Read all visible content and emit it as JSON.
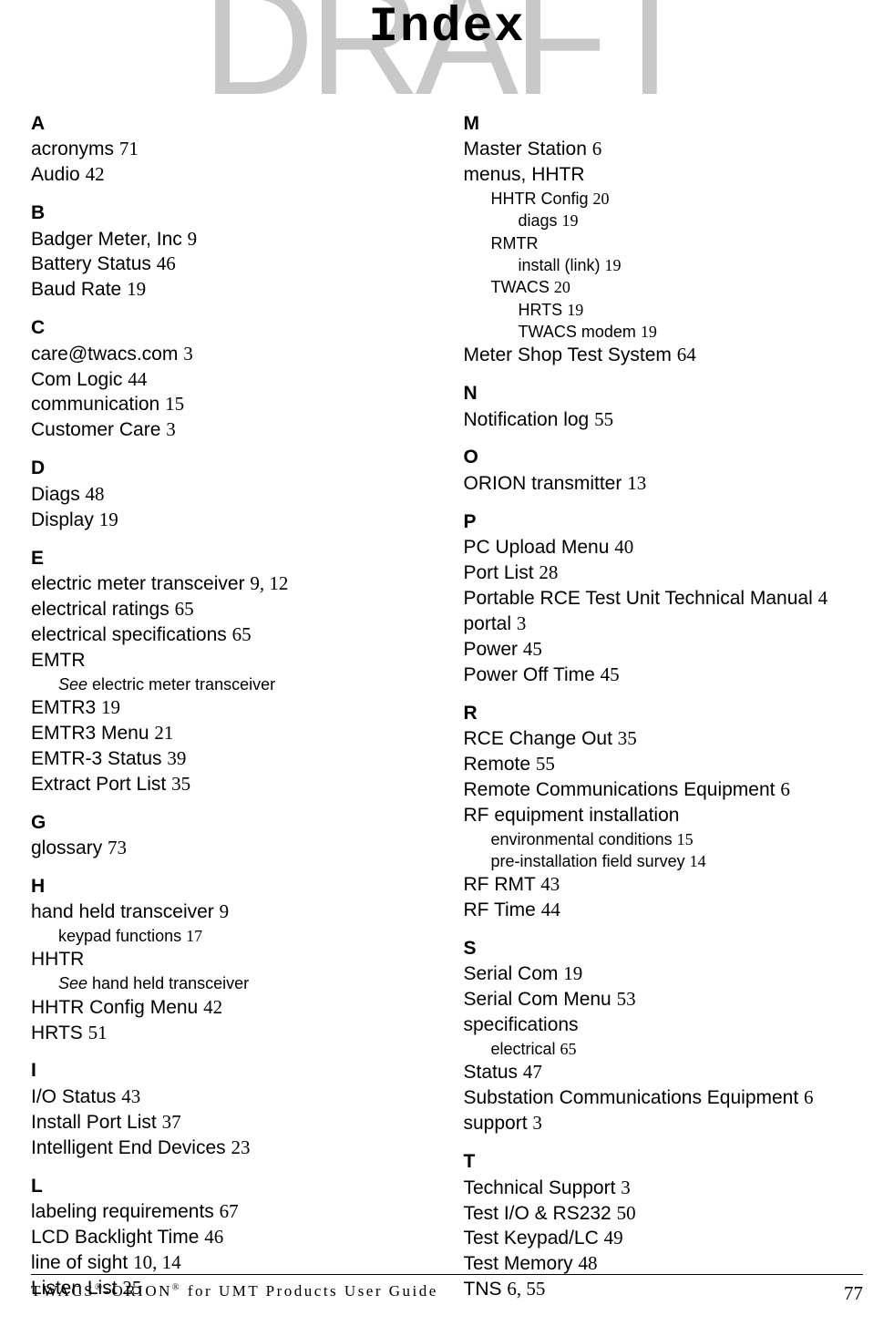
{
  "watermark": "DRAFT",
  "title": "Index",
  "left": [
    {
      "letter": "A",
      "items": [
        {
          "t": "entry",
          "label": "acronyms",
          "page": "71"
        },
        {
          "t": "entry",
          "label": "Audio",
          "page": "42"
        }
      ]
    },
    {
      "letter": "B",
      "items": [
        {
          "t": "entry",
          "label": "Badger Meter, Inc",
          "page": "9"
        },
        {
          "t": "entry",
          "label": "Battery Status",
          "page": "46"
        },
        {
          "t": "entry",
          "label": "Baud Rate",
          "page": "19"
        }
      ]
    },
    {
      "letter": "C",
      "items": [
        {
          "t": "entry",
          "label": "care@twacs.com",
          "page": "3"
        },
        {
          "t": "entry",
          "label": "Com Logic",
          "page": "44"
        },
        {
          "t": "entry",
          "label": "communication",
          "page": "15"
        },
        {
          "t": "entry",
          "label": "Customer Care",
          "page": "3"
        }
      ]
    },
    {
      "letter": "D",
      "items": [
        {
          "t": "entry",
          "label": "Diags",
          "page": "48"
        },
        {
          "t": "entry",
          "label": "Display",
          "page": "19"
        }
      ]
    },
    {
      "letter": "E",
      "items": [
        {
          "t": "entry",
          "label": "electric meter transceiver",
          "page": "9, 12"
        },
        {
          "t": "entry",
          "label": "electrical ratings",
          "page": "65"
        },
        {
          "t": "entry",
          "label": "electrical specifications",
          "page": "65"
        },
        {
          "t": "entry",
          "label": "EMTR",
          "page": ""
        },
        {
          "t": "see1",
          "label": "See",
          "tail": " electric meter transceiver"
        },
        {
          "t": "entry",
          "label": "EMTR3",
          "page": "19"
        },
        {
          "t": "entry",
          "label": "EMTR3 Menu",
          "page": "21"
        },
        {
          "t": "entry",
          "label": "EMTR-3 Status",
          "page": "39"
        },
        {
          "t": "entry",
          "label": "Extract Port List",
          "page": "35"
        }
      ]
    },
    {
      "letter": "G",
      "items": [
        {
          "t": "entry",
          "label": "glossary",
          "page": "73"
        }
      ]
    },
    {
      "letter": "H",
      "items": [
        {
          "t": "entry",
          "label": "hand held transceiver",
          "page": "9"
        },
        {
          "t": "sub1",
          "label": "keypad functions",
          "page": "17"
        },
        {
          "t": "entry",
          "label": "HHTR",
          "page": ""
        },
        {
          "t": "see1",
          "label": "See",
          "tail": " hand held transceiver"
        },
        {
          "t": "entry",
          "label": "HHTR Config Menu",
          "page": "42"
        },
        {
          "t": "entry",
          "label": "HRTS",
          "page": "51"
        }
      ]
    },
    {
      "letter": "I",
      "items": [
        {
          "t": "entry",
          "label": "I/O Status",
          "page": "43"
        },
        {
          "t": "entry",
          "label": "Install Port List",
          "page": "37"
        },
        {
          "t": "entry",
          "label": "Intelligent End Devices",
          "page": "23"
        }
      ]
    },
    {
      "letter": "L",
      "items": [
        {
          "t": "entry",
          "label": "labeling requirements",
          "page": "67"
        },
        {
          "t": "entry",
          "label": "LCD Backlight Time",
          "page": "46"
        },
        {
          "t": "entry",
          "label": "line of sight",
          "page": "10, 14"
        },
        {
          "t": "entry",
          "label": "Listen List",
          "page": "25"
        }
      ]
    }
  ],
  "right": [
    {
      "letter": "M",
      "items": [
        {
          "t": "entry",
          "label": "Master Station",
          "page": "6"
        },
        {
          "t": "entry",
          "label": "menus, HHTR",
          "page": ""
        },
        {
          "t": "sub1",
          "label": "HHTR Config",
          "page": "20"
        },
        {
          "t": "sub2",
          "label": "diags",
          "page": "19"
        },
        {
          "t": "sub1",
          "label": "RMTR",
          "page": ""
        },
        {
          "t": "sub2",
          "label": "install (link)",
          "page": "19"
        },
        {
          "t": "sub1",
          "label": "TWACS",
          "page": "20"
        },
        {
          "t": "sub2",
          "label": "HRTS",
          "page": "19"
        },
        {
          "t": "sub2",
          "label": "TWACS modem",
          "page": "19"
        },
        {
          "t": "entry",
          "label": "Meter Shop Test System",
          "page": "64"
        }
      ]
    },
    {
      "letter": "N",
      "items": [
        {
          "t": "entry",
          "label": "Notification log",
          "page": "55"
        }
      ]
    },
    {
      "letter": "O",
      "items": [
        {
          "t": "entry",
          "label": "ORION transmitter",
          "page": "13"
        }
      ]
    },
    {
      "letter": "P",
      "items": [
        {
          "t": "entry",
          "label": "PC Upload Menu",
          "page": "40"
        },
        {
          "t": "entry",
          "label": "Port List",
          "page": "28"
        },
        {
          "t": "entry",
          "label": "Portable RCE Test Unit Technical Manual",
          "page": "4"
        },
        {
          "t": "entry",
          "label": "portal",
          "page": "3"
        },
        {
          "t": "entry",
          "label": "Power",
          "page": "45"
        },
        {
          "t": "entry",
          "label": "Power Off Time",
          "page": "45"
        }
      ]
    },
    {
      "letter": "R",
      "items": [
        {
          "t": "entry",
          "label": "RCE Change Out",
          "page": "35"
        },
        {
          "t": "entry",
          "label": "Remote",
          "page": "55"
        },
        {
          "t": "entry",
          "label": "Remote Communications Equipment",
          "page": "6"
        },
        {
          "t": "entry",
          "label": "RF equipment installation",
          "page": ""
        },
        {
          "t": "sub1",
          "label": "environmental conditions",
          "page": "15"
        },
        {
          "t": "sub1",
          "label": "pre-installation field survey",
          "page": "14"
        },
        {
          "t": "entry",
          "label": "RF RMT",
          "page": "43"
        },
        {
          "t": "entry",
          "label": "RF Time",
          "page": "44"
        }
      ]
    },
    {
      "letter": "S",
      "items": [
        {
          "t": "entry",
          "label": "Serial Com",
          "page": "19"
        },
        {
          "t": "entry",
          "label": "Serial Com Menu",
          "page": "53"
        },
        {
          "t": "entry",
          "label": "specifications",
          "page": ""
        },
        {
          "t": "sub1",
          "label": "electrical",
          "page": "65"
        },
        {
          "t": "entry",
          "label": "Status",
          "page": "47"
        },
        {
          "t": "entry",
          "label": "Substation Communications Equipment",
          "page": "6"
        },
        {
          "t": "entry",
          "label": "support",
          "page": "3"
        }
      ]
    },
    {
      "letter": "T",
      "items": [
        {
          "t": "entry",
          "label": "Technical Support",
          "page": "3"
        },
        {
          "t": "entry",
          "label": "Test I/O & RS232",
          "page": "50"
        },
        {
          "t": "entry",
          "label": "Test Keypad/LC",
          "page": "49"
        },
        {
          "t": "entry",
          "label": "Test Memory",
          "page": "48"
        },
        {
          "t": "entry",
          "label": "TNS",
          "page": "6, 55"
        }
      ]
    }
  ],
  "footer": {
    "left": "TWACS®-ORION® for UMT Products User Guide",
    "page": "77"
  }
}
